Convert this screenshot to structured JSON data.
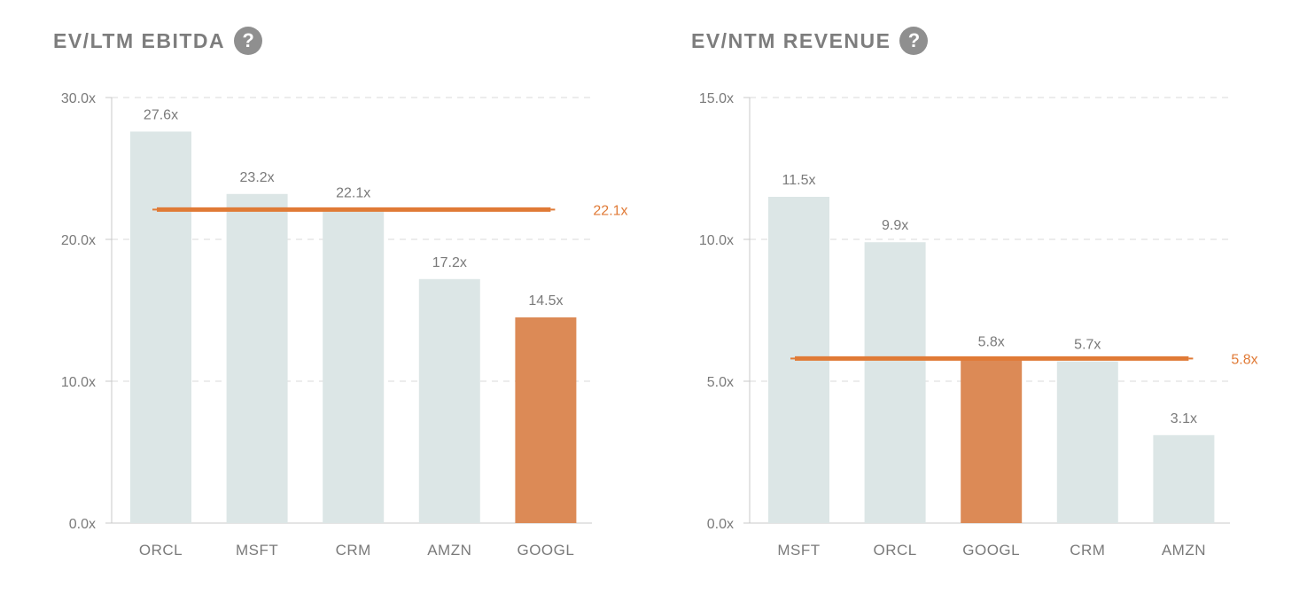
{
  "colors": {
    "bar": "#dce6e6",
    "highlight": "#dc8a56",
    "highlight_line": "#e07a36",
    "axis": "#c8c8c8",
    "grid": "#d9d9d9",
    "text": "#7a7a7a"
  },
  "icons": {
    "help": "question-mark-circle-icon",
    "help_glyph": "?"
  },
  "chart_data": [
    {
      "type": "bar",
      "title": "EV/LTM EBITDA",
      "categories": [
        "ORCL",
        "MSFT",
        "CRM",
        "AMZN",
        "GOOGL"
      ],
      "values": [
        27.6,
        23.2,
        22.1,
        17.2,
        14.5
      ],
      "value_labels": [
        "27.6x",
        "23.2x",
        "22.1x",
        "17.2x",
        "14.5x"
      ],
      "highlight": "GOOGL",
      "median": 22.1,
      "median_label": "22.1x",
      "ylim": [
        0,
        30
      ],
      "yticks": [
        0,
        10,
        20,
        30
      ],
      "ytick_labels": [
        "0.0x",
        "10.0x",
        "20.0x",
        "30.0x"
      ],
      "xlabel": "",
      "ylabel": ""
    },
    {
      "type": "bar",
      "title": "EV/NTM REVENUE",
      "categories": [
        "MSFT",
        "ORCL",
        "GOOGL",
        "CRM",
        "AMZN"
      ],
      "values": [
        11.5,
        9.9,
        5.8,
        5.7,
        3.1
      ],
      "value_labels": [
        "11.5x",
        "9.9x",
        "5.8x",
        "5.7x",
        "3.1x"
      ],
      "highlight": "GOOGL",
      "median": 5.8,
      "median_label": "5.8x",
      "ylim": [
        0,
        15
      ],
      "yticks": [
        0,
        5,
        10,
        15
      ],
      "ytick_labels": [
        "0.0x",
        "5.0x",
        "10.0x",
        "15.0x"
      ],
      "xlabel": "",
      "ylabel": ""
    }
  ]
}
